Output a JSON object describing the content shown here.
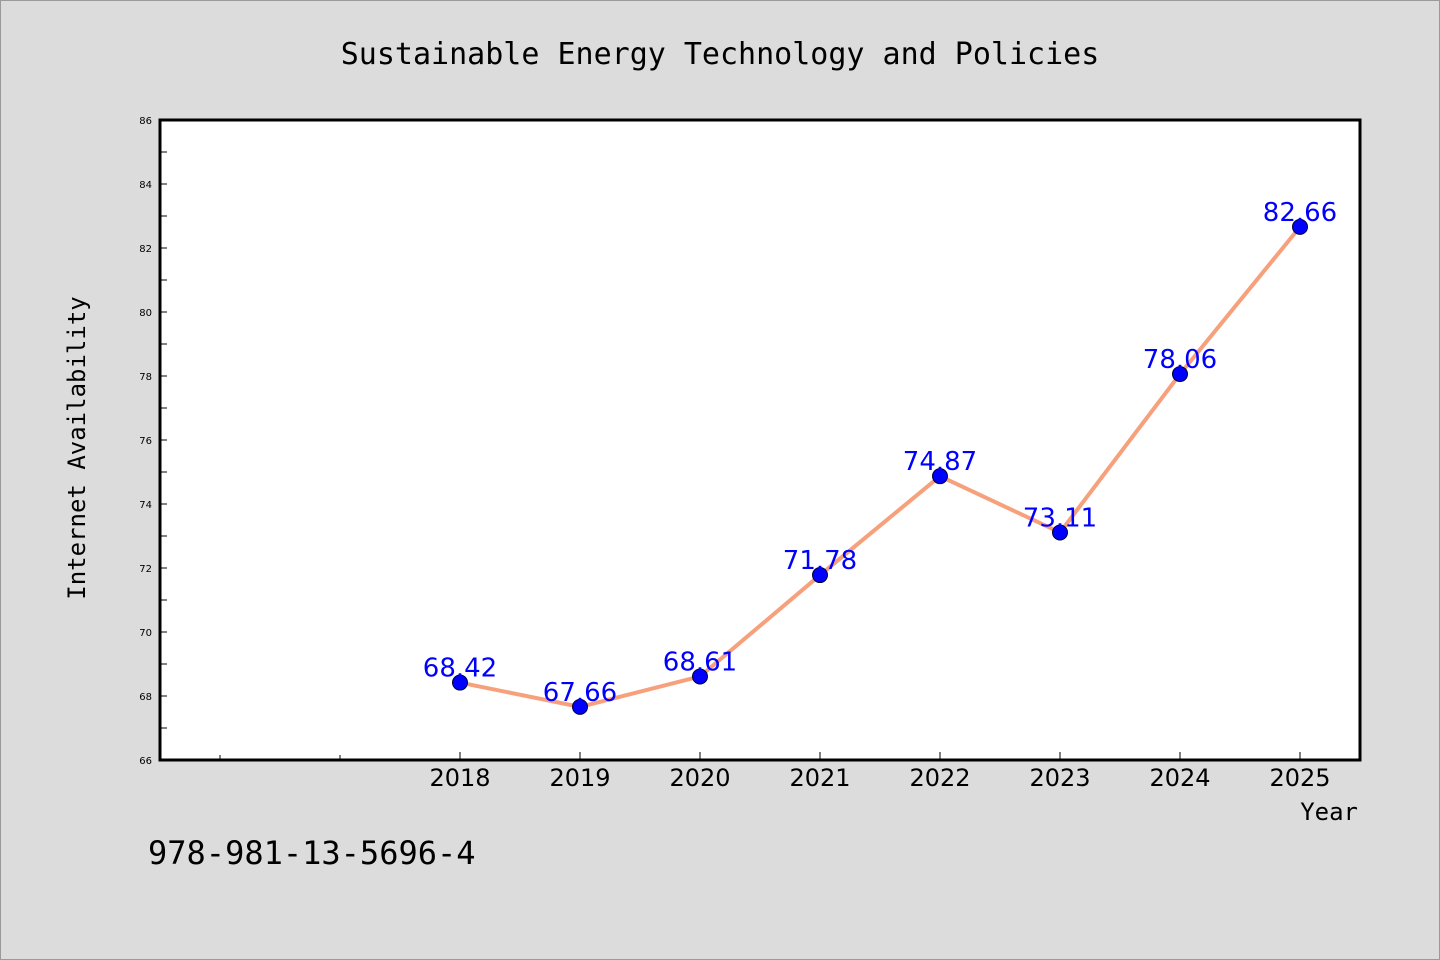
{
  "colors": {
    "background": "#dcdcdc",
    "plot_background": "#ffffff",
    "line": "#f7a07c",
    "marker": "#0000ff",
    "data_label": "#0000ff"
  },
  "isbn_text": "978-981-13-5696-4",
  "chart_data": {
    "type": "line",
    "title": "Sustainable Energy Technology and Policies",
    "xlabel": "Year",
    "ylabel": "Internet Availability",
    "ylim": [
      66,
      86
    ],
    "yticks": [
      "66",
      "68",
      "70",
      "72",
      "74",
      "76",
      "78",
      "80",
      "82",
      "84",
      "86"
    ],
    "xlim": [
      2015.5,
      2025.5
    ],
    "xticks": [
      "2018",
      "2019",
      "2020",
      "2021",
      "2022",
      "2023",
      "2024",
      "2025"
    ],
    "x": [
      2018,
      2019,
      2020,
      2021,
      2022,
      2023,
      2024,
      2025
    ],
    "series": [
      {
        "values": [
          68.42,
          67.66,
          68.61,
          71.78,
          74.87,
          73.11,
          78.06,
          82.66
        ],
        "labels": [
          "68.42",
          "67.66",
          "68.61",
          "71.78",
          "74.87",
          "73.11",
          "78.06",
          "82.66"
        ]
      }
    ],
    "grid": false,
    "legend": "none"
  }
}
